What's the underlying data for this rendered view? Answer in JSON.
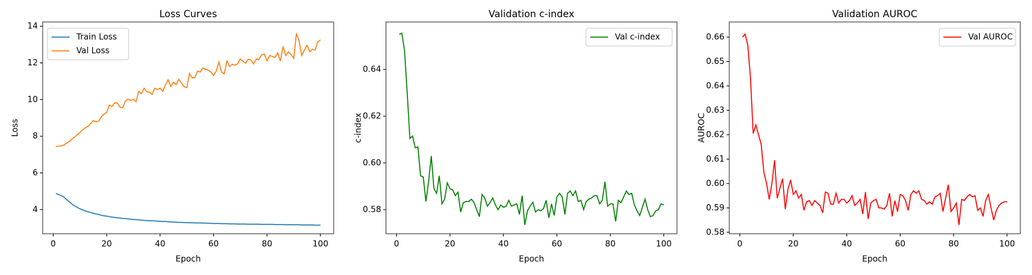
{
  "chart_data": [
    {
      "type": "line",
      "title": "Loss Curves",
      "x_label": "Epoch",
      "y_label": "Loss",
      "legend": "upper left",
      "xlim": [
        -3.95,
        104.95
      ],
      "xticks": [
        0,
        20,
        40,
        60,
        80,
        100
      ],
      "ylim": [
        2.68,
        14.23
      ],
      "yticks": [
        4,
        6,
        8,
        10,
        12,
        14
      ],
      "x": [
        1,
        2,
        3,
        4,
        5,
        6,
        7,
        8,
        9,
        10,
        11,
        12,
        13,
        14,
        15,
        16,
        17,
        18,
        19,
        20,
        21,
        22,
        23,
        24,
        25,
        26,
        27,
        28,
        29,
        30,
        31,
        32,
        33,
        34,
        35,
        36,
        37,
        38,
        39,
        40,
        41,
        42,
        43,
        44,
        45,
        46,
        47,
        48,
        49,
        50,
        51,
        52,
        53,
        54,
        55,
        56,
        57,
        58,
        59,
        60,
        61,
        62,
        63,
        64,
        65,
        66,
        67,
        68,
        69,
        70,
        71,
        72,
        73,
        74,
        75,
        76,
        77,
        78,
        79,
        80,
        81,
        82,
        83,
        84,
        85,
        86,
        87,
        88,
        89,
        90,
        91,
        92,
        93,
        94,
        95,
        96,
        97,
        98,
        99,
        100
      ],
      "series": [
        {
          "name": "Train Loss",
          "color": "#1f77b4",
          "values": [
            4.88,
            4.82,
            4.76,
            4.68,
            4.55,
            4.42,
            4.3,
            4.2,
            4.12,
            4.04,
            3.98,
            3.93,
            3.88,
            3.84,
            3.8,
            3.76,
            3.73,
            3.69,
            3.66,
            3.64,
            3.62,
            3.59,
            3.57,
            3.55,
            3.54,
            3.52,
            3.51,
            3.49,
            3.47,
            3.46,
            3.45,
            3.44,
            3.42,
            3.41,
            3.4,
            3.39,
            3.39,
            3.38,
            3.37,
            3.36,
            3.35,
            3.35,
            3.33,
            3.32,
            3.32,
            3.31,
            3.3,
            3.3,
            3.29,
            3.29,
            3.28,
            3.28,
            3.27,
            3.27,
            3.27,
            3.26,
            3.26,
            3.25,
            3.25,
            3.24,
            3.24,
            3.24,
            3.23,
            3.23,
            3.23,
            3.22,
            3.22,
            3.22,
            3.21,
            3.21,
            3.21,
            3.21,
            3.2,
            3.2,
            3.2,
            3.2,
            3.2,
            3.19,
            3.19,
            3.19,
            3.19,
            3.19,
            3.18,
            3.18,
            3.18,
            3.18,
            3.17,
            3.17,
            3.18,
            3.17,
            3.17,
            3.17,
            3.16,
            3.16,
            3.16,
            3.16,
            3.16,
            3.15,
            3.15,
            3.15
          ]
        },
        {
          "name": "Val Loss",
          "color": "#ff7f0e",
          "values": [
            7.45,
            7.45,
            7.47,
            7.52,
            7.62,
            7.7,
            7.85,
            7.95,
            8.08,
            8.2,
            8.35,
            8.45,
            8.55,
            8.7,
            8.85,
            8.78,
            8.82,
            9.05,
            9.2,
            9.3,
            9.7,
            9.62,
            9.82,
            9.8,
            9.58,
            9.55,
            9.92,
            10.02,
            9.95,
            10.02,
            9.88,
            10.45,
            10.32,
            10.62,
            10.42,
            10.4,
            10.28,
            10.62,
            10.55,
            10.62,
            10.45,
            10.8,
            11.08,
            10.72,
            10.95,
            10.82,
            11.1,
            10.9,
            10.7,
            10.65,
            11.42,
            11.18,
            11.2,
            11.55,
            11.5,
            11.72,
            11.65,
            11.6,
            11.5,
            11.32,
            11.55,
            12.05,
            11.5,
            11.4,
            12.1,
            11.8,
            11.92,
            11.88,
            11.95,
            12.2,
            12.1,
            11.98,
            12.2,
            12.15,
            11.95,
            12.22,
            12.18,
            12.45,
            12.48,
            12.12,
            12.4,
            12.35,
            12.3,
            12.55,
            12.1,
            12.9,
            12.4,
            12.6,
            12.45,
            12.25,
            13.6,
            13.2,
            12.4,
            12.7,
            12.95,
            12.6,
            12.75,
            12.7,
            13.15,
            13.25
          ]
        }
      ]
    },
    {
      "type": "line",
      "title": "Validation c-index",
      "x_label": "Epoch",
      "y_label": "c-index",
      "legend": "upper right",
      "xlim": [
        -3.95,
        104.95
      ],
      "xticks": [
        0,
        20,
        40,
        60,
        80,
        100
      ],
      "ylim": [
        0.5697,
        0.6603
      ],
      "yticks": [
        0.58,
        {
          "value": 0.6,
          "label": "0.60"
        },
        0.62,
        0.64
      ],
      "x": [
        1,
        2,
        3,
        4,
        5,
        6,
        7,
        8,
        9,
        10,
        11,
        12,
        13,
        14,
        15,
        16,
        17,
        18,
        19,
        20,
        21,
        22,
        23,
        24,
        25,
        26,
        27,
        28,
        29,
        30,
        31,
        32,
        33,
        34,
        35,
        36,
        37,
        38,
        39,
        40,
        41,
        42,
        43,
        44,
        45,
        46,
        47,
        48,
        49,
        50,
        51,
        52,
        53,
        54,
        55,
        56,
        57,
        58,
        59,
        60,
        61,
        62,
        63,
        64,
        65,
        66,
        67,
        68,
        69,
        70,
        71,
        72,
        73,
        74,
        75,
        76,
        77,
        78,
        79,
        80,
        81,
        82,
        83,
        84,
        85,
        86,
        87,
        88,
        89,
        90,
        91,
        92,
        93,
        94,
        95,
        96,
        97,
        98,
        99,
        100
      ],
      "series": [
        {
          "name": "Val c-index",
          "color": "#008000",
          "values": [
            0.655,
            0.6555,
            0.648,
            0.63,
            0.6105,
            0.6115,
            0.6065,
            0.6068,
            0.5945,
            0.594,
            0.5835,
            0.592,
            0.603,
            0.589,
            0.587,
            0.5945,
            0.5825,
            0.5845,
            0.5915,
            0.589,
            0.5885,
            0.586,
            0.5875,
            0.579,
            0.583,
            0.5835,
            0.5835,
            0.5845,
            0.583,
            0.58,
            0.577,
            0.5865,
            0.585,
            0.5815,
            0.583,
            0.585,
            0.582,
            0.58,
            0.582,
            0.581,
            0.5815,
            0.584,
            0.5815,
            0.582,
            0.5825,
            0.578,
            0.586,
            0.5735,
            0.5795,
            0.5815,
            0.5832,
            0.579,
            0.58,
            0.5795,
            0.5805,
            0.584,
            0.5765,
            0.5825,
            0.5775,
            0.5855,
            0.587,
            0.5855,
            0.578,
            0.587,
            0.588,
            0.586,
            0.588,
            0.5835,
            0.584,
            0.58,
            0.5835,
            0.5845,
            0.585,
            0.586,
            0.586,
            0.5825,
            0.584,
            0.592,
            0.5815,
            0.5825,
            0.5825,
            0.575,
            0.584,
            0.583,
            0.5855,
            0.588,
            0.5865,
            0.587,
            0.582,
            0.5795,
            0.5775,
            0.581,
            0.5845,
            0.58,
            0.577,
            0.5775,
            0.5795,
            0.58,
            0.5825,
            0.582
          ]
        }
      ]
    },
    {
      "type": "line",
      "title": "Validation AUROC",
      "x_label": "Epoch",
      "y_label": "AUROC",
      "legend": "upper right",
      "xlim": [
        -3.95,
        104.95
      ],
      "xticks": [
        0,
        20,
        40,
        60,
        80,
        100
      ],
      "ylim": [
        0.5794,
        0.6662
      ],
      "yticks": [
        0.58,
        0.59,
        {
          "value": 0.6,
          "label": "0.60"
        },
        0.61,
        0.62,
        0.63,
        0.64,
        0.65,
        0.66
      ],
      "x": [
        1,
        2,
        3,
        4,
        5,
        6,
        7,
        8,
        9,
        10,
        11,
        12,
        13,
        14,
        15,
        16,
        17,
        18,
        19,
        20,
        21,
        22,
        23,
        24,
        25,
        26,
        27,
        28,
        29,
        30,
        31,
        32,
        33,
        34,
        35,
        36,
        37,
        38,
        39,
        40,
        41,
        42,
        43,
        44,
        45,
        46,
        47,
        48,
        49,
        50,
        51,
        52,
        53,
        54,
        55,
        56,
        57,
        58,
        59,
        60,
        61,
        62,
        63,
        64,
        65,
        66,
        67,
        68,
        69,
        70,
        71,
        72,
        73,
        74,
        75,
        76,
        77,
        78,
        79,
        80,
        81,
        82,
        83,
        84,
        85,
        86,
        87,
        88,
        89,
        90,
        91,
        92,
        93,
        94,
        95,
        96,
        97,
        98,
        99,
        100
      ],
      "series": [
        {
          "name": "Val AUROC",
          "color": "#ff0000",
          "values": [
            0.66,
            0.6612,
            0.6565,
            0.643,
            0.6205,
            0.624,
            0.62,
            0.616,
            0.6045,
            0.6,
            0.5935,
            0.6,
            0.6095,
            0.594,
            0.598,
            0.602,
            0.5895,
            0.5975,
            0.6015,
            0.5955,
            0.597,
            0.594,
            0.5955,
            0.589,
            0.5925,
            0.593,
            0.591,
            0.593,
            0.592,
            0.591,
            0.588,
            0.5965,
            0.596,
            0.5915,
            0.5915,
            0.596,
            0.592,
            0.5935,
            0.5935,
            0.592,
            0.593,
            0.595,
            0.591,
            0.592,
            0.5935,
            0.5875,
            0.5965,
            0.5855,
            0.592,
            0.593,
            0.5935,
            0.59,
            0.59,
            0.5895,
            0.591,
            0.596,
            0.5865,
            0.593,
            0.5885,
            0.5955,
            0.595,
            0.593,
            0.589,
            0.5955,
            0.597,
            0.596,
            0.597,
            0.5935,
            0.593,
            0.5915,
            0.5925,
            0.5915,
            0.5945,
            0.595,
            0.596,
            0.5885,
            0.594,
            0.5995,
            0.5885,
            0.59,
            0.592,
            0.583,
            0.5935,
            0.593,
            0.5945,
            0.5955,
            0.5945,
            0.595,
            0.589,
            0.59,
            0.5865,
            0.593,
            0.5955,
            0.59,
            0.585,
            0.589,
            0.591,
            0.592,
            0.5925,
            0.5925
          ]
        }
      ]
    }
  ]
}
